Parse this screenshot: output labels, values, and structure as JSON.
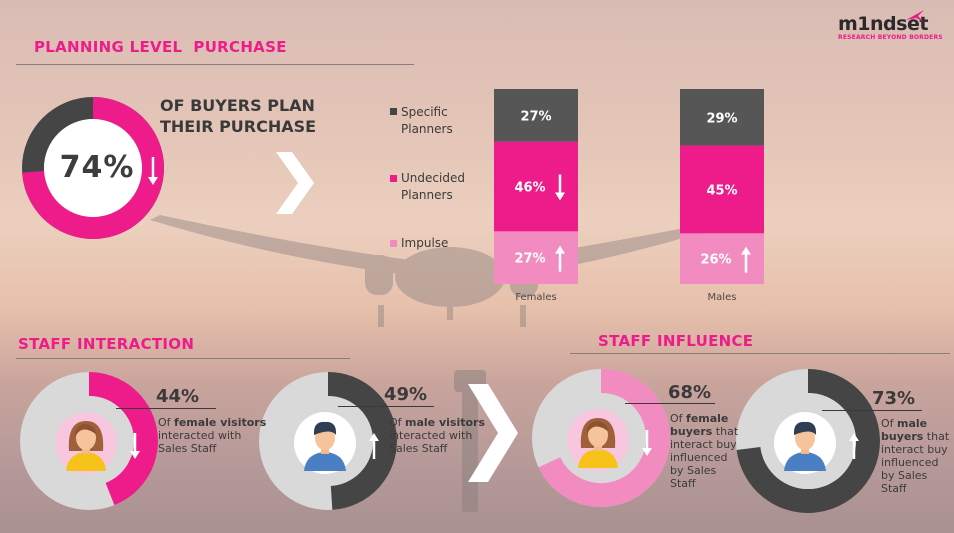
{
  "logo": {
    "text_a": "m1nd",
    "text_b": "set",
    "tagline": "RESEARCH BEYOND BORDERS"
  },
  "planning": {
    "section_title": "PLANNING LEVEL  PURCHASE",
    "donut_value": "74%",
    "donut_fraction": 0.74,
    "headline_line1": "OF BUYERS PLAN",
    "headline_line2": "THEIR PURCHASE"
  },
  "chart_data": {
    "type": "bar",
    "stacked": true,
    "categories": [
      "Females",
      "Males"
    ],
    "series": [
      {
        "name": "Impulse",
        "values": [
          27,
          26
        ],
        "labels": [
          "27%",
          "26%"
        ],
        "color": "#f28bc0",
        "arrow": [
          "up",
          "up"
        ]
      },
      {
        "name": "Undecided Planners",
        "values": [
          46,
          45
        ],
        "labels": [
          "46%",
          "45%"
        ],
        "color": "#ee1c8a",
        "arrow": [
          "down",
          ""
        ]
      },
      {
        "name": "Specific Planners",
        "values": [
          27,
          29
        ],
        "labels": [
          "27%",
          "29%"
        ],
        "color": "#565656",
        "arrow": [
          "",
          ""
        ]
      }
    ],
    "legend": [
      {
        "name_line1": "Specific",
        "name_line2": "Planners",
        "color": "#454545"
      },
      {
        "name_line1": "Undecided",
        "name_line2": "Planners",
        "color": "#ee1c8a"
      },
      {
        "name_line1": "Impulse",
        "name_line2": "",
        "color": "#f28bc0"
      }
    ]
  },
  "staff_interaction": {
    "section_title": "STAFF INTERACTION",
    "female": {
      "value": "44%",
      "fraction": 0.44,
      "bold": "female visitors",
      "prefix": "Of ",
      "line2": "interacted with",
      "line3": "Sales Staff"
    },
    "male": {
      "value": "49%",
      "fraction": 0.49,
      "bold": "male visitors",
      "prefix": "Of ",
      "line2": "interacted with",
      "line3": "Sales Staff"
    }
  },
  "staff_influence": {
    "section_title": "STAFF INFLUENCE",
    "female": {
      "value": "68%",
      "fraction": 0.68,
      "prefix": "Of ",
      "bold1": "female",
      "bold2": "buyers",
      "rest2": " that",
      "line3": "interact buy",
      "line4": "influenced",
      "line5": "by Sales",
      "line6": "Staff"
    },
    "male": {
      "value": "73%",
      "fraction": 0.73,
      "prefix": "Of ",
      "bold1": "male",
      "bold2": "buyers",
      "rest2": " that",
      "line3": "interact buy",
      "line4": "influenced",
      "line5": "by Sales",
      "line6": "Staff"
    }
  },
  "colors": {
    "pink": "#ee1c8a",
    "light_pink": "#f28bc0",
    "dark": "#454545",
    "ring_bg": "#d9d9d9"
  }
}
